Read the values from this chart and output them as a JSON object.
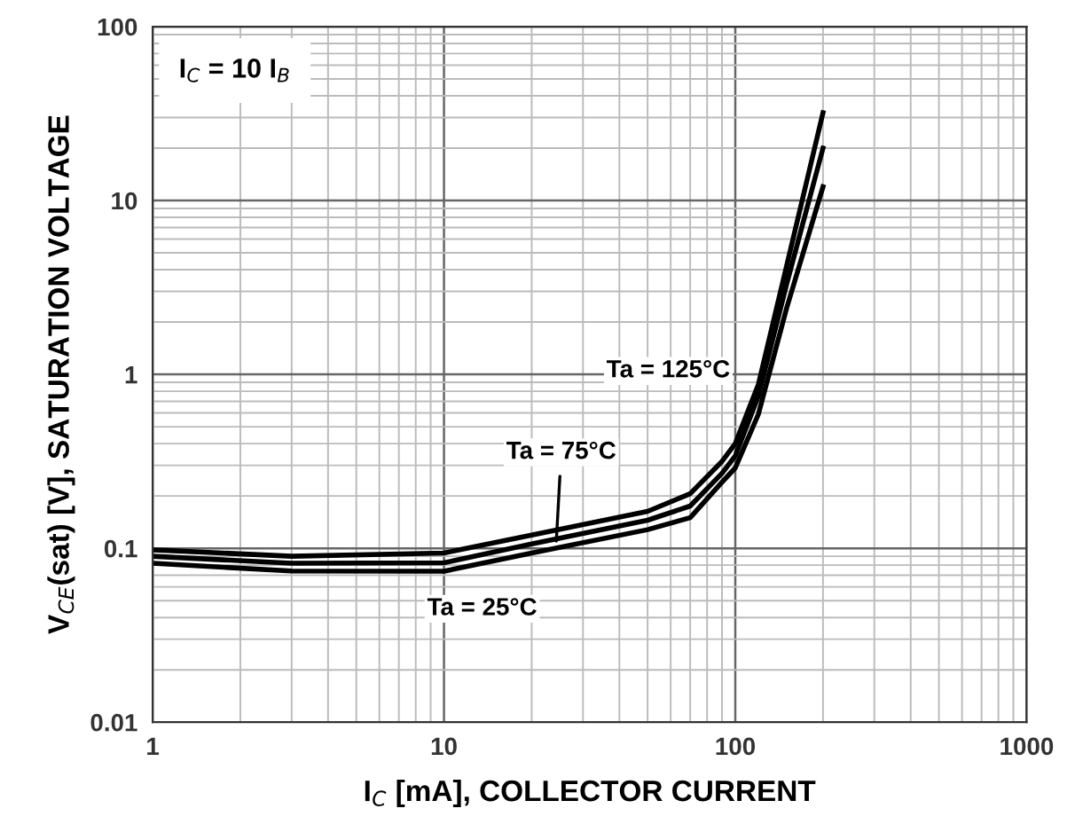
{
  "chart_data": {
    "type": "line",
    "xlabel": "I$_{C}$ [mA], COLLECTOR CURRENT",
    "ylabel": "V$_{CE}$(sat) [V], SATURATION VOLTAGE",
    "x": [
      1,
      3,
      10,
      20,
      50,
      70,
      90,
      100,
      120,
      150,
      200
    ],
    "series": [
      {
        "color": "#000000",
        "values": [
          0.098,
          0.09,
          0.094,
          0.119,
          0.163,
          0.206,
          0.316,
          0.4,
          0.875,
          4.2,
          32
        ]
      },
      {
        "color": "#000000",
        "values": [
          0.09,
          0.082,
          0.0825,
          0.106,
          0.145,
          0.175,
          0.27,
          0.34,
          0.75,
          3.3,
          20
        ]
      },
      {
        "color": "#000000",
        "values": [
          0.082,
          0.074,
          0.0738,
          0.094,
          0.128,
          0.15,
          0.24,
          0.29,
          0.59,
          2.4,
          12
        ]
      }
    ],
    "log": "xy",
    "xlim": [
      1,
      1000
    ],
    "xticks": [
      1,
      10,
      100,
      1000
    ],
    "ylim": [
      0.01,
      100
    ],
    "yticks": [
      0.01,
      0.1,
      1,
      10,
      100
    ],
    "grid": true,
    "line_style": "solid",
    "marker": "none",
    "annotations": [
      "I$_{C}$ = 10 I$_{B}$",
      "Ta = 125°C",
      {
        "text": "Ta = 75°C",
        "x": 24.3,
        "y": 0.11
      },
      "Ta = 25°C"
    ]
  }
}
